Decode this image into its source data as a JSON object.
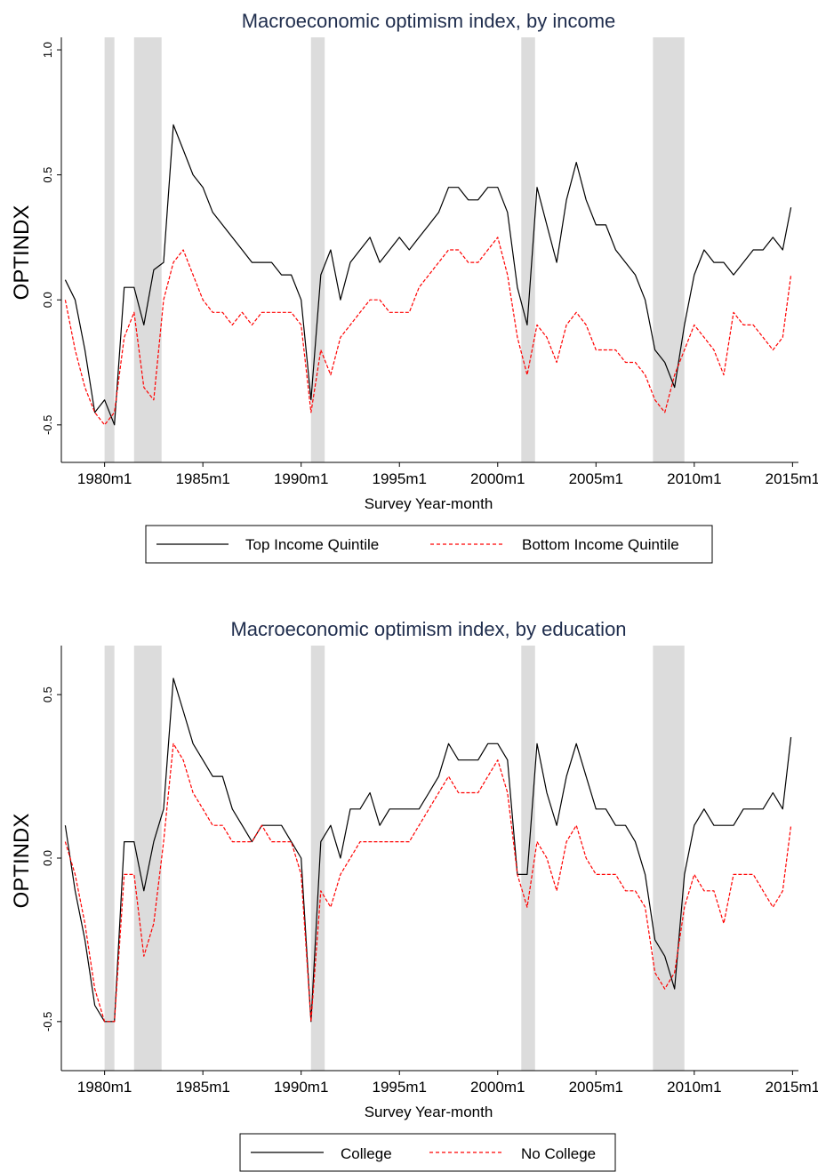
{
  "chart_data": [
    {
      "type": "line",
      "title": "Macroeconomic optimism index, by income",
      "xlabel": "Survey Year-month",
      "ylabel": "OPTINDX",
      "xlim": [
        1977.8,
        2015.3
      ],
      "ylim": [
        -0.65,
        1.05
      ],
      "x_ticks": [
        1980,
        1985,
        1990,
        1995,
        2000,
        2005,
        2010,
        2015
      ],
      "x_tick_labels": [
        "1980m1",
        "1985m1",
        "1990m1",
        "1995m1",
        "2000m1",
        "2005m1",
        "2010m1",
        "2015m1"
      ],
      "y_ticks": [
        -0.5,
        0,
        0.5,
        1
      ],
      "y_tick_labels": [
        "-0.5",
        "0.0",
        "0.5",
        "1.0"
      ],
      "recessions": [
        [
          1980.0,
          1980.5
        ],
        [
          1981.5,
          1982.9
        ],
        [
          1990.5,
          1991.2
        ],
        [
          2001.2,
          2001.9
        ],
        [
          2007.9,
          2009.5
        ]
      ],
      "grid": false,
      "legend_position": "bottom",
      "x": [
        1978.0,
        1978.5,
        1979.0,
        1979.5,
        1980.0,
        1980.5,
        1981.0,
        1981.5,
        1982.0,
        1982.5,
        1983.0,
        1983.5,
        1984.0,
        1984.5,
        1985.0,
        1985.5,
        1986.0,
        1986.5,
        1987.0,
        1987.5,
        1988.0,
        1988.5,
        1989.0,
        1989.5,
        1990.0,
        1990.5,
        1991.0,
        1991.5,
        1992.0,
        1992.5,
        1993.0,
        1993.5,
        1994.0,
        1994.5,
        1995.0,
        1995.5,
        1996.0,
        1996.5,
        1997.0,
        1997.5,
        1998.0,
        1998.5,
        1999.0,
        1999.5,
        2000.0,
        2000.5,
        2001.0,
        2001.5,
        2002.0,
        2002.5,
        2003.0,
        2003.5,
        2004.0,
        2004.5,
        2005.0,
        2005.5,
        2006.0,
        2006.5,
        2007.0,
        2007.5,
        2008.0,
        2008.5,
        2009.0,
        2009.5,
        2010.0,
        2010.5,
        2011.0,
        2011.5,
        2012.0,
        2012.5,
        2013.0,
        2013.5,
        2014.0,
        2014.5,
        2014.92
      ],
      "series": [
        {
          "name": "Top Income Quintile",
          "color": "#000000",
          "dash": "solid",
          "values": [
            0.08,
            0.0,
            -0.2,
            -0.45,
            -0.4,
            -0.5,
            0.05,
            0.05,
            -0.1,
            0.12,
            0.15,
            0.7,
            0.6,
            0.5,
            0.45,
            0.35,
            0.3,
            0.25,
            0.2,
            0.15,
            0.15,
            0.15,
            0.1,
            0.1,
            0.0,
            -0.4,
            0.1,
            0.2,
            0.0,
            0.15,
            0.2,
            0.25,
            0.15,
            0.2,
            0.25,
            0.2,
            0.25,
            0.3,
            0.35,
            0.45,
            0.45,
            0.4,
            0.4,
            0.45,
            0.45,
            0.35,
            0.05,
            -0.1,
            0.45,
            0.3,
            0.15,
            0.4,
            0.55,
            0.4,
            0.3,
            0.3,
            0.2,
            0.15,
            0.1,
            0.0,
            -0.2,
            -0.25,
            -0.35,
            -0.1,
            0.1,
            0.2,
            0.15,
            0.15,
            0.1,
            0.15,
            0.2,
            0.2,
            0.25,
            0.2,
            0.37
          ]
        },
        {
          "name": "Bottom Income Quintile",
          "color": "#ff0000",
          "dash": "dashed",
          "values": [
            0.0,
            -0.2,
            -0.35,
            -0.45,
            -0.5,
            -0.45,
            -0.15,
            -0.05,
            -0.35,
            -0.4,
            0.0,
            0.15,
            0.2,
            0.1,
            0.0,
            -0.05,
            -0.05,
            -0.1,
            -0.05,
            -0.1,
            -0.05,
            -0.05,
            -0.05,
            -0.05,
            -0.1,
            -0.45,
            -0.2,
            -0.3,
            -0.15,
            -0.1,
            -0.05,
            0.0,
            0.0,
            -0.05,
            -0.05,
            -0.05,
            0.05,
            0.1,
            0.15,
            0.2,
            0.2,
            0.15,
            0.15,
            0.2,
            0.25,
            0.1,
            -0.15,
            -0.3,
            -0.1,
            -0.15,
            -0.25,
            -0.1,
            -0.05,
            -0.1,
            -0.2,
            -0.2,
            -0.2,
            -0.25,
            -0.25,
            -0.3,
            -0.4,
            -0.45,
            -0.3,
            -0.2,
            -0.1,
            -0.15,
            -0.2,
            -0.3,
            -0.05,
            -0.1,
            -0.1,
            -0.15,
            -0.2,
            -0.15,
            0.1
          ]
        }
      ]
    },
    {
      "type": "line",
      "title": "Macroeconomic optimism index, by education",
      "xlabel": "Survey Year-month",
      "ylabel": "OPTINDX",
      "xlim": [
        1977.8,
        2015.3
      ],
      "ylim": [
        -0.65,
        0.65
      ],
      "x_ticks": [
        1980,
        1985,
        1990,
        1995,
        2000,
        2005,
        2010,
        2015
      ],
      "x_tick_labels": [
        "1980m1",
        "1985m1",
        "1990m1",
        "1995m1",
        "2000m1",
        "2005m1",
        "2010m1",
        "2015m1"
      ],
      "y_ticks": [
        -0.5,
        0,
        0.5
      ],
      "y_tick_labels": [
        "-0.5",
        "0.0",
        "0.5"
      ],
      "recessions": [
        [
          1980.0,
          1980.5
        ],
        [
          1981.5,
          1982.9
        ],
        [
          1990.5,
          1991.2
        ],
        [
          2001.2,
          2001.9
        ],
        [
          2007.9,
          2009.5
        ]
      ],
      "grid": false,
      "legend_position": "bottom",
      "x": [
        1978.0,
        1978.5,
        1979.0,
        1979.5,
        1980.0,
        1980.5,
        1981.0,
        1981.5,
        1982.0,
        1982.5,
        1983.0,
        1983.5,
        1984.0,
        1984.5,
        1985.0,
        1985.5,
        1986.0,
        1986.5,
        1987.0,
        1987.5,
        1988.0,
        1988.5,
        1989.0,
        1989.5,
        1990.0,
        1990.5,
        1991.0,
        1991.5,
        1992.0,
        1992.5,
        1993.0,
        1993.5,
        1994.0,
        1994.5,
        1995.0,
        1995.5,
        1996.0,
        1996.5,
        1997.0,
        1997.5,
        1998.0,
        1998.5,
        1999.0,
        1999.5,
        2000.0,
        2000.5,
        2001.0,
        2001.5,
        2002.0,
        2002.5,
        2003.0,
        2003.5,
        2004.0,
        2004.5,
        2005.0,
        2005.5,
        2006.0,
        2006.5,
        2007.0,
        2007.5,
        2008.0,
        2008.5,
        2009.0,
        2009.5,
        2010.0,
        2010.5,
        2011.0,
        2011.5,
        2012.0,
        2012.5,
        2013.0,
        2013.5,
        2014.0,
        2014.5,
        2014.92
      ],
      "series": [
        {
          "name": "College",
          "color": "#000000",
          "dash": "solid",
          "values": [
            0.1,
            -0.1,
            -0.25,
            -0.45,
            -0.5,
            -0.5,
            0.05,
            0.05,
            -0.1,
            0.05,
            0.15,
            0.55,
            0.45,
            0.35,
            0.3,
            0.25,
            0.25,
            0.15,
            0.1,
            0.05,
            0.1,
            0.1,
            0.1,
            0.05,
            0.0,
            -0.5,
            0.05,
            0.1,
            0.0,
            0.15,
            0.15,
            0.2,
            0.1,
            0.15,
            0.15,
            0.15,
            0.15,
            0.2,
            0.25,
            0.35,
            0.3,
            0.3,
            0.3,
            0.35,
            0.35,
            0.3,
            -0.05,
            -0.05,
            0.35,
            0.2,
            0.1,
            0.25,
            0.35,
            0.25,
            0.15,
            0.15,
            0.1,
            0.1,
            0.05,
            -0.05,
            -0.25,
            -0.3,
            -0.4,
            -0.05,
            0.1,
            0.15,
            0.1,
            0.1,
            0.1,
            0.15,
            0.15,
            0.15,
            0.2,
            0.15,
            0.37
          ]
        },
        {
          "name": "No College",
          "color": "#ff0000",
          "dash": "dashed",
          "values": [
            0.05,
            -0.05,
            -0.2,
            -0.4,
            -0.5,
            -0.5,
            -0.05,
            -0.05,
            -0.3,
            -0.2,
            0.05,
            0.35,
            0.3,
            0.2,
            0.15,
            0.1,
            0.1,
            0.05,
            0.05,
            0.05,
            0.1,
            0.05,
            0.05,
            0.05,
            -0.05,
            -0.5,
            -0.1,
            -0.15,
            -0.05,
            0.0,
            0.05,
            0.05,
            0.05,
            0.05,
            0.05,
            0.05,
            0.1,
            0.15,
            0.2,
            0.25,
            0.2,
            0.2,
            0.2,
            0.25,
            0.3,
            0.2,
            -0.05,
            -0.15,
            0.05,
            0.0,
            -0.1,
            0.05,
            0.1,
            0.0,
            -0.05,
            -0.05,
            -0.05,
            -0.1,
            -0.1,
            -0.15,
            -0.35,
            -0.4,
            -0.35,
            -0.15,
            -0.05,
            -0.1,
            -0.1,
            -0.2,
            -0.05,
            -0.05,
            -0.05,
            -0.1,
            -0.15,
            -0.1,
            0.1
          ]
        }
      ]
    }
  ]
}
